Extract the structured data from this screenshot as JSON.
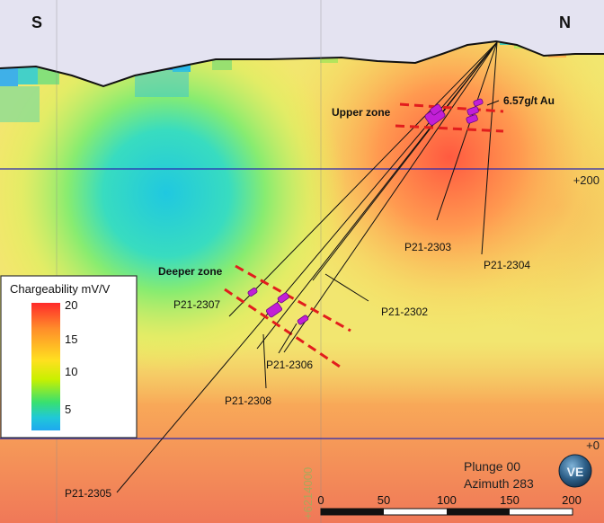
{
  "orientation": {
    "left": "S",
    "right": "N"
  },
  "elevation_labels": [
    "+200",
    "+0"
  ],
  "northing_label": "+6214000",
  "legend": {
    "title": "Chargeability mV/V",
    "ticks": [
      "20",
      "15",
      "10",
      "5"
    ],
    "colors": [
      "#ff2a2a",
      "#ff8c2a",
      "#ffe020",
      "#c8f000",
      "#38e070",
      "#20c8d8",
      "#1ea8f0"
    ]
  },
  "zones": {
    "upper": "Upper zone",
    "deeper": "Deeper zone"
  },
  "assay": "6.57g/t Au",
  "holes": [
    "P21-2302",
    "P21-2303",
    "P21-2304",
    "P21-2305",
    "P21-2306",
    "P21-2307",
    "P21-2308"
  ],
  "view": {
    "plunge": "Plunge 00",
    "azimuth": "Azimuth 283"
  },
  "scale_bar": {
    "ticks": [
      "0",
      "50",
      "100",
      "150",
      "200"
    ]
  },
  "logo": "VE",
  "colors": {
    "grid_line": "#2b2bb0",
    "target_dash": "#e21d1d",
    "intercept": "#c21fd6",
    "sky": "#e4e3f1"
  }
}
